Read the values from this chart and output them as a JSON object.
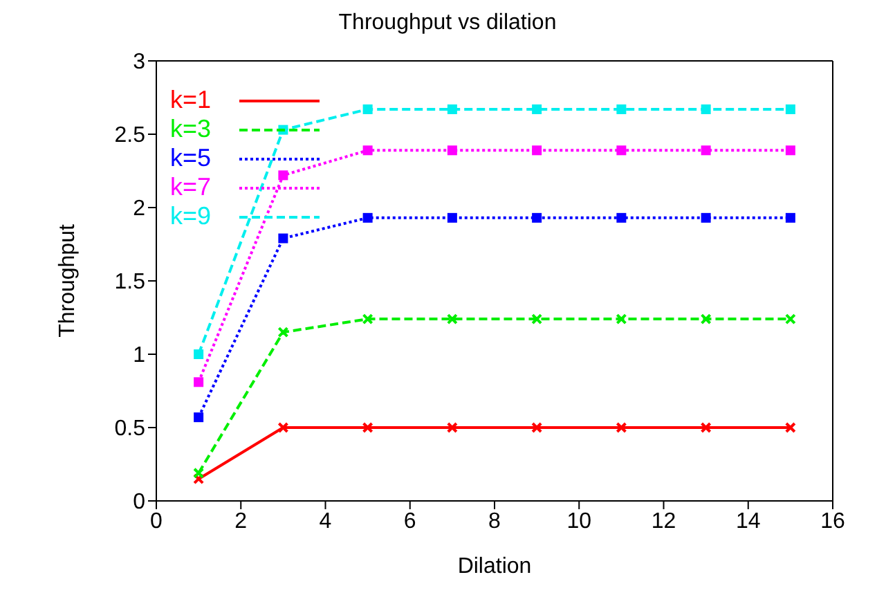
{
  "chart_data": {
    "type": "line",
    "title": "Throughput vs dilation",
    "xlabel": "Dilation",
    "ylabel": "Throughput",
    "x": [
      1,
      3,
      5,
      7,
      9,
      11,
      13,
      15
    ],
    "xlim": [
      0,
      16
    ],
    "xticks": [
      0,
      2,
      4,
      6,
      8,
      10,
      12,
      14,
      16
    ],
    "ylim": [
      0,
      3
    ],
    "yticks": [
      0,
      0.5,
      1,
      1.5,
      2,
      2.5,
      3
    ],
    "grid": false,
    "legend": "top left",
    "series": [
      {
        "name": "k=1",
        "color": "#ff0000",
        "marker": "cross",
        "line_style": "solid",
        "values": [
          0.15,
          0.5,
          0.5,
          0.5,
          0.5,
          0.5,
          0.5,
          0.5
        ]
      },
      {
        "name": "k=3",
        "color": "#00ee00",
        "marker": "cross",
        "line_style": "dashed",
        "values": [
          0.19,
          1.15,
          1.24,
          1.24,
          1.24,
          1.24,
          1.24,
          1.24
        ]
      },
      {
        "name": "k=5",
        "color": "#0000ff",
        "marker": "square",
        "line_style": "dotted",
        "values": [
          0.57,
          1.79,
          1.93,
          1.93,
          1.93,
          1.93,
          1.93,
          1.93
        ]
      },
      {
        "name": "k=7",
        "color": "#ff00ff",
        "marker": "square",
        "line_style": "dotted",
        "values": [
          0.81,
          2.22,
          2.39,
          2.39,
          2.39,
          2.39,
          2.39,
          2.39
        ]
      },
      {
        "name": "k=9",
        "color": "#00eeee",
        "marker": "square",
        "line_style": "dashed",
        "values": [
          1.0,
          2.53,
          2.67,
          2.67,
          2.67,
          2.67,
          2.67,
          2.67
        ]
      }
    ]
  }
}
